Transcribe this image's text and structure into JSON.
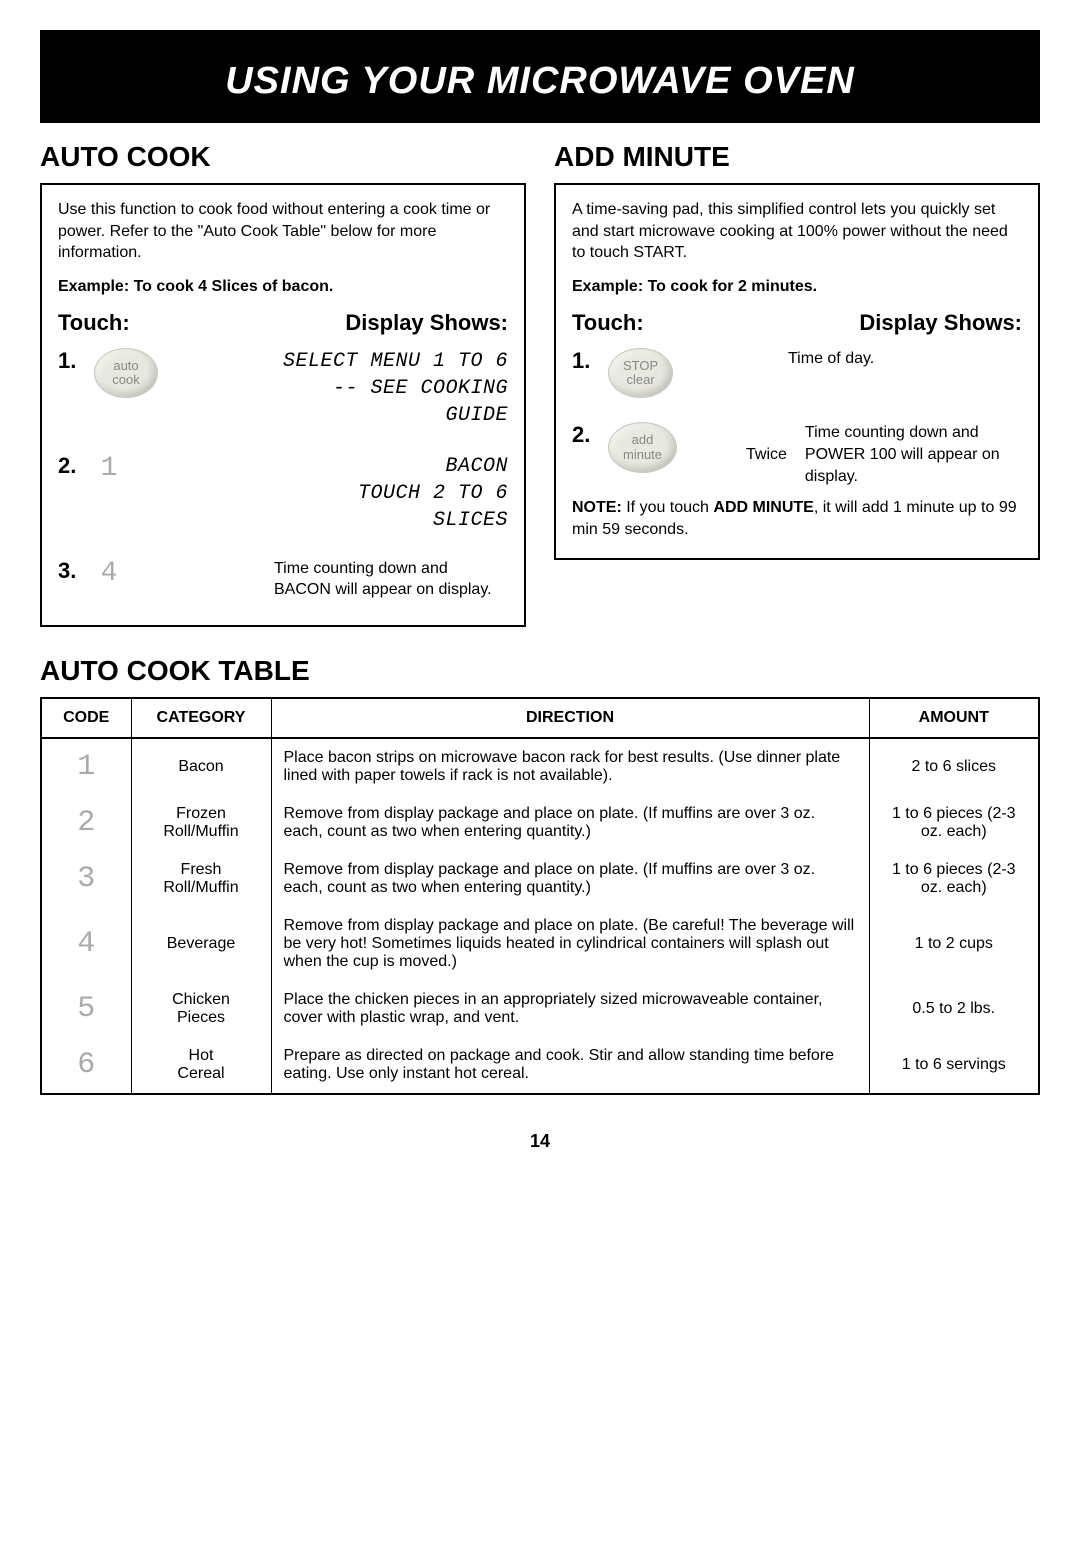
{
  "header": {
    "title": "USING YOUR MICROWAVE OVEN"
  },
  "auto_cook": {
    "title": "AUTO COOK",
    "intro": "Use this function to cook food without entering a cook time or power. Refer to the \"Auto Cook Table\" below for more information.",
    "example": "Example: To cook 4 Slices of bacon.",
    "touch_hdr": "Touch:",
    "display_hdr": "Display Shows:",
    "steps": [
      {
        "num": "1.",
        "pad_line1": "auto",
        "pad_line2": "cook",
        "seg1": "SELECT MENU 1 TO 6",
        "seg2": "-- SEE COOKING GUIDE"
      },
      {
        "num": "2.",
        "digit": "1",
        "seg1": "BACON",
        "seg2": "TOUCH 2 TO 6 SLICES"
      },
      {
        "num": "3.",
        "digit": "4",
        "text": "Time counting down and BACON will appear on display."
      }
    ]
  },
  "add_minute": {
    "title": "ADD MINUTE",
    "intro": "A time-saving pad, this simplified control lets you quickly set and start microwave cooking at 100% power without the need to touch START.",
    "example": "Example: To cook for 2 minutes.",
    "touch_hdr": "Touch:",
    "display_hdr": "Display Shows:",
    "steps": [
      {
        "num": "1.",
        "pad_line1": "STOP",
        "pad_line2": "clear",
        "text": "Time of day."
      },
      {
        "num": "2.",
        "pad_line1": "add",
        "pad_line2": "minute",
        "twice": "Twice",
        "text": "Time counting down and POWER 100 will appear on display."
      }
    ],
    "note_bold": "NOTE:",
    "note_mid": " If you touch ",
    "note_bold2": "ADD MINUTE",
    "note_end": ", it will add 1 minute up to 99 min 59 seconds."
  },
  "table": {
    "title": "AUTO COOK TABLE",
    "headers": {
      "code": "CODE",
      "category": "CATEGORY",
      "direction": "DIRECTION",
      "amount": "AMOUNT"
    },
    "col_widths": {
      "code": "90px",
      "category": "140px",
      "direction": "auto",
      "amount": "170px"
    },
    "rows": [
      {
        "code": "1",
        "category": "Bacon",
        "direction": "Place bacon strips on microwave bacon rack for best results. (Use dinner plate lined with paper towels if rack is not available).",
        "amount": "2 to 6 slices"
      },
      {
        "code": "2",
        "category": "Frozen Roll/Muffin",
        "direction": "Remove from display package and place on plate. (If muffins are over 3 oz. each, count as two when entering quantity.)",
        "amount": "1 to 6 pieces (2-3 oz. each)"
      },
      {
        "code": "3",
        "category": "Fresh Roll/Muffin",
        "direction": "Remove from display package and place on plate. (If muffins are over 3 oz. each, count as two when entering quantity.)",
        "amount": "1 to 6 pieces (2-3 oz. each)"
      },
      {
        "code": "4",
        "category": "Beverage",
        "direction": "Remove from display package and place on plate. (Be careful! The beverage will be very hot! Sometimes liquids heated in cylindrical containers will splash out when the cup is moved.)",
        "amount": "1 to 2 cups"
      },
      {
        "code": "5",
        "category": "Chicken Pieces",
        "direction": "Place the chicken pieces in an appropriately sized microwaveable container, cover with plastic wrap, and vent.",
        "amount": "0.5 to 2 lbs."
      },
      {
        "code": "6",
        "category": "Hot Cereal",
        "direction": "Prepare as directed on package and cook. Stir and allow standing time before eating. Use only instant hot cereal.",
        "amount": "1 to 6 servings"
      }
    ]
  },
  "page_number": "14"
}
